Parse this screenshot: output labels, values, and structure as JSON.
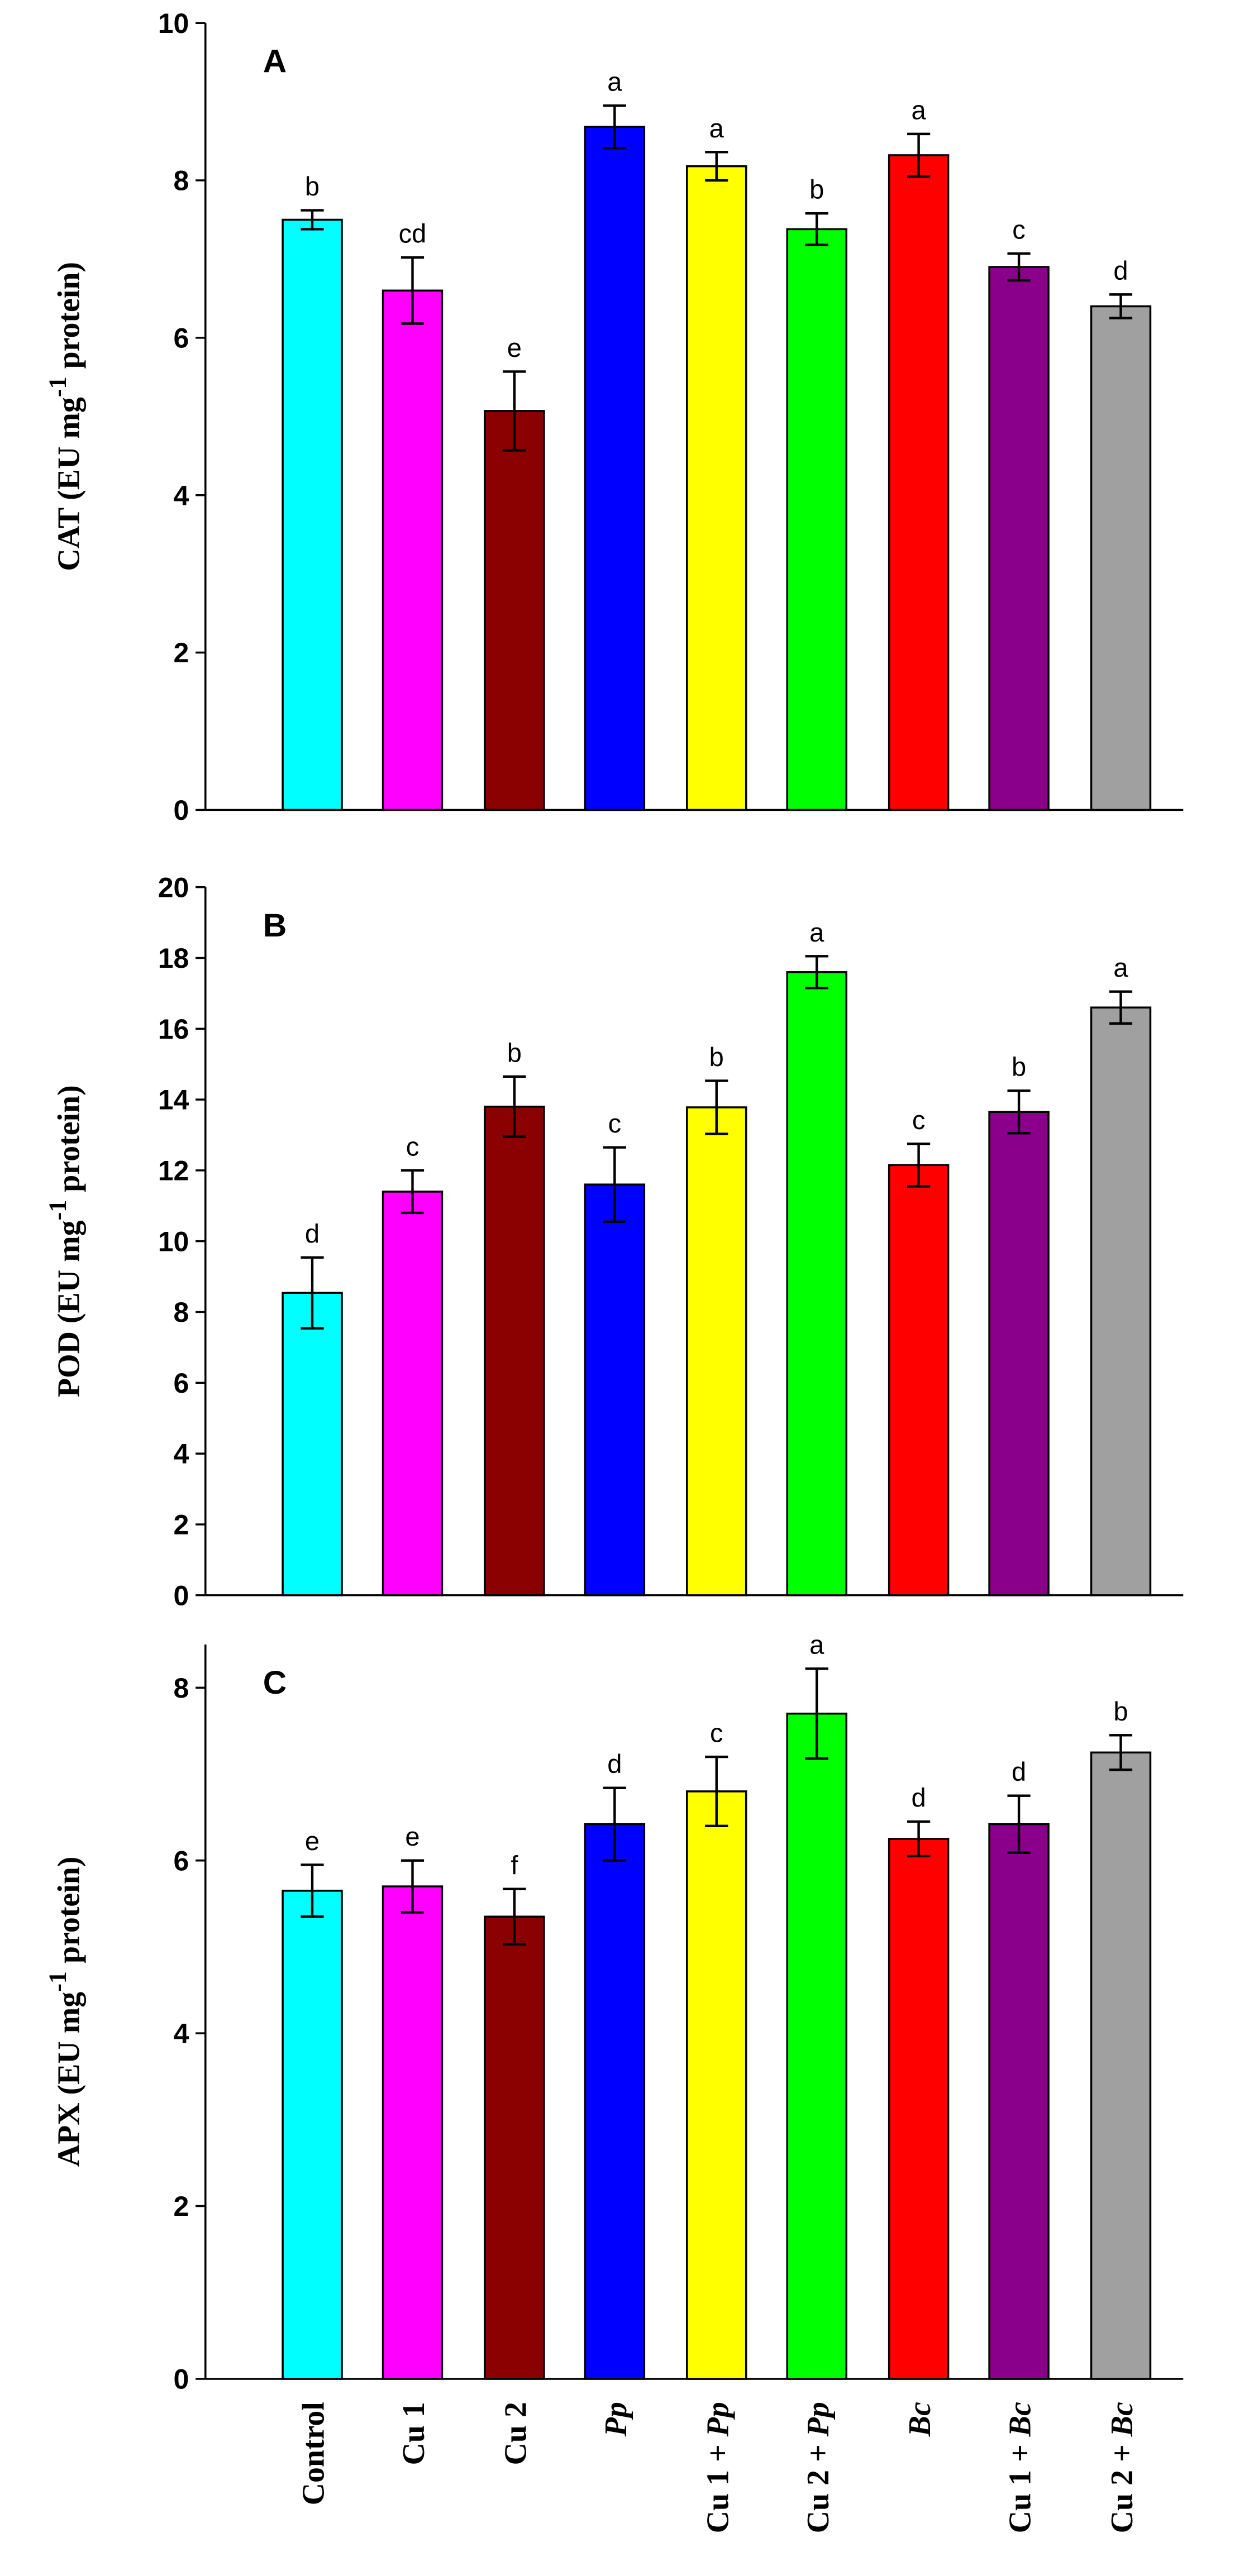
{
  "chart_data": {
    "type": "bar",
    "categories": [
      "Control",
      "Cu 1",
      "Cu 2",
      "Pp",
      "Cu 1 + Pp",
      "Cu 2 + Pp",
      "Bc",
      "Cu 1 + Bc",
      "Cu 2 + Bc"
    ],
    "italic_terms": [
      "Pp",
      "Bc"
    ],
    "colors": [
      "#00ffff",
      "#ff00ff",
      "#8b0000",
      "#0000ff",
      "#ffff00",
      "#00ff00",
      "#ff0000",
      "#8b008b",
      "#a0a0a0"
    ],
    "panels": [
      {
        "label": "A",
        "ylabel": {
          "main": "CAT (EU mg",
          "sup": "-1",
          "tail": " protein)"
        },
        "ylim": [
          0,
          10
        ],
        "yticks": [
          0,
          2,
          4,
          6,
          8,
          10
        ],
        "values": [
          7.5,
          6.6,
          5.07,
          8.68,
          8.18,
          7.38,
          8.32,
          6.9,
          6.4
        ],
        "errors": [
          0.12,
          0.42,
          0.5,
          0.27,
          0.18,
          0.2,
          0.27,
          0.17,
          0.15
        ],
        "letters": [
          "b",
          "cd",
          "e",
          "a",
          "a",
          "b",
          "a",
          "c",
          "d"
        ]
      },
      {
        "label": "B",
        "ylabel": {
          "main": "POD (EU mg",
          "sup": "-1",
          "tail": " protein)"
        },
        "ylim": [
          0,
          20
        ],
        "yticks": [
          0,
          2,
          4,
          6,
          8,
          10,
          12,
          14,
          16,
          18,
          20
        ],
        "values": [
          8.54,
          11.4,
          13.8,
          11.6,
          13.78,
          17.6,
          12.15,
          13.65,
          16.6
        ],
        "errors": [
          1.0,
          0.6,
          0.85,
          1.05,
          0.75,
          0.45,
          0.6,
          0.6,
          0.45
        ],
        "letters": [
          "d",
          "c",
          "b",
          "c",
          "b",
          "a",
          "c",
          "b",
          "a"
        ]
      },
      {
        "label": "C",
        "ylabel": {
          "main": "APX (EU mg",
          "sup": "-1",
          "tail": " protein)"
        },
        "ylim": [
          0,
          8.5
        ],
        "yticks": [
          0,
          2,
          4,
          6,
          8
        ],
        "values": [
          5.65,
          5.7,
          5.35,
          6.42,
          6.8,
          7.7,
          6.25,
          6.42,
          7.25
        ],
        "errors": [
          0.3,
          0.3,
          0.32,
          0.42,
          0.4,
          0.52,
          0.2,
          0.33,
          0.2
        ],
        "letters": [
          "e",
          "e",
          "f",
          "d",
          "c",
          "a",
          "d",
          "d",
          "b"
        ]
      }
    ]
  }
}
